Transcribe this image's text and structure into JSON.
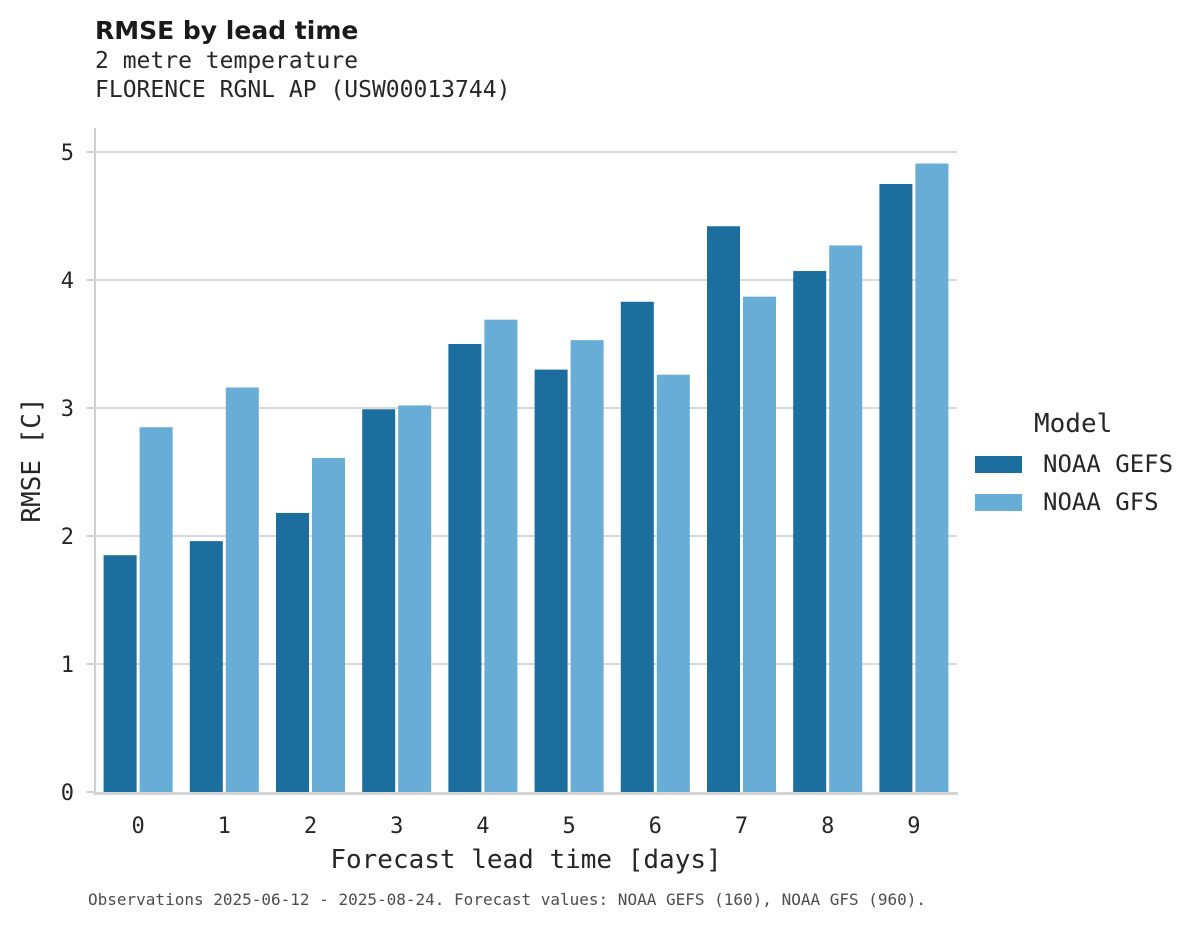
{
  "header": {
    "title": "RMSE by lead time",
    "subtitle1": "2 metre temperature",
    "subtitle2": "FLORENCE RGNL AP (USW00013744)"
  },
  "legend": {
    "title": "Model",
    "entries": [
      {
        "label": "NOAA GEFS",
        "color": "#1b6e9e"
      },
      {
        "label": "NOAA GFS",
        "color": "#67add5"
      }
    ]
  },
  "footnote": "Observations 2025-06-12 - 2025-08-24. Forecast values: NOAA GEFS (160), NOAA GFS (960).",
  "chart_data": {
    "type": "bar",
    "title": "RMSE by lead time",
    "subtitle": [
      "2 metre temperature",
      "FLORENCE RGNL AP (USW00013744)"
    ],
    "categories": [
      0,
      1,
      2,
      3,
      4,
      5,
      6,
      7,
      8,
      9
    ],
    "series": [
      {
        "name": "NOAA GEFS",
        "color": "#1b6e9e",
        "values": [
          1.85,
          1.96,
          2.18,
          2.99,
          3.5,
          3.3,
          3.83,
          4.42,
          4.07,
          4.75
        ]
      },
      {
        "name": "NOAA GFS",
        "color": "#67add5",
        "values": [
          2.85,
          3.16,
          2.61,
          3.02,
          3.69,
          3.53,
          3.26,
          3.87,
          4.27,
          4.91
        ]
      }
    ],
    "xlabel": "Forecast lead time [days]",
    "ylabel": "RMSE [C]",
    "ylim": [
      0,
      5
    ],
    "yticks": [
      0,
      1,
      2,
      3,
      4,
      5
    ],
    "grid": true,
    "legend_position": "right",
    "colors": {
      "gridline": "#d9d9d9",
      "axisline": "#d4d4d4",
      "spine": "#cfcfcf",
      "tick_text": "#262626"
    }
  }
}
